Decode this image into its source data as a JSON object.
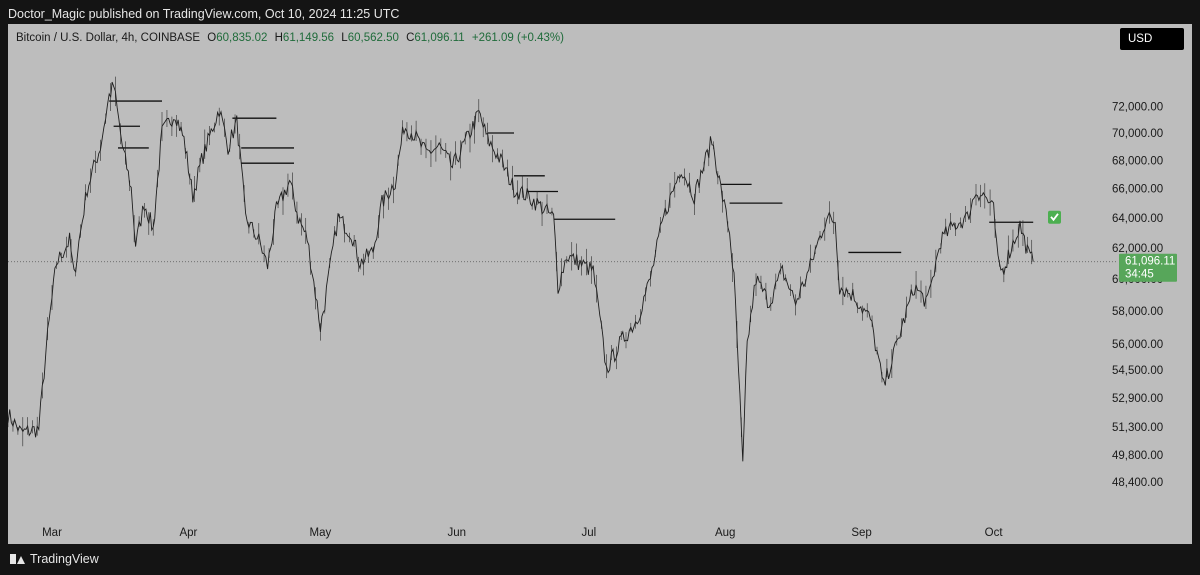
{
  "header": {
    "publisher_line": "Doctor_Magic published on TradingView.com, Oct 10, 2024 11:25 UTC"
  },
  "legend": {
    "symbol": "Bitcoin / U.S. Dollar, 4h, COINBASE",
    "open_label": "O",
    "open": "60,835.02",
    "high_label": "H",
    "high": "61,149.56",
    "low_label": "L",
    "low": "60,562.50",
    "close_label": "C",
    "close": "61,096.11",
    "change": "+261.09 (+0.43%)"
  },
  "currency_badge": "USD",
  "price_tag": {
    "price": "61,096.11",
    "countdown": "34:45",
    "color": "#57a65a"
  },
  "check_icon_color": "#4caf50",
  "footer": {
    "brand": "TradingView"
  },
  "chart_data": {
    "type": "line",
    "series_name": "",
    "y_scale": "log",
    "ylim": [
      47800,
      74500
    ],
    "y_ticks": [
      72000,
      70000,
      68000,
      66000,
      64000,
      62000,
      60000,
      58000,
      56000,
      54500,
      52900,
      51300,
      49800,
      48400
    ],
    "y_tick_labels": [
      "72,000.00",
      "70,000.00",
      "68,000.00",
      "66,000.00",
      "64,000.00",
      "62,000.00",
      "60,000.00",
      "58,000.00",
      "56,000.00",
      "54,500.00",
      "52,900.00",
      "51,300.00",
      "49,800.00",
      "48,400.00"
    ],
    "x_range": [
      "2024-02-20",
      "2024-10-27"
    ],
    "x_tick_labels": [
      {
        "date": "2024-03-01",
        "label": "Mar"
      },
      {
        "date": "2024-04-01",
        "label": "Apr"
      },
      {
        "date": "2024-05-01",
        "label": "May"
      },
      {
        "date": "2024-06-01",
        "label": "Jun"
      },
      {
        "date": "2024-07-01",
        "label": "Jul"
      },
      {
        "date": "2024-08-01",
        "label": "Aug"
      },
      {
        "date": "2024-09-01",
        "label": "Sep"
      },
      {
        "date": "2024-10-01",
        "label": "Oct"
      }
    ],
    "price_points": [
      [
        "2024-02-20",
        52000
      ],
      [
        "2024-02-23",
        51000
      ],
      [
        "2024-02-27",
        51200
      ],
      [
        "2024-02-29",
        56500
      ],
      [
        "2024-03-02",
        61000
      ],
      [
        "2024-03-05",
        62500
      ],
      [
        "2024-03-06",
        60200
      ],
      [
        "2024-03-09",
        66000
      ],
      [
        "2024-03-12",
        69000
      ],
      [
        "2024-03-14",
        72800
      ],
      [
        "2024-03-15",
        73600
      ],
      [
        "2024-03-17",
        69000
      ],
      [
        "2024-03-19",
        66000
      ],
      [
        "2024-03-20",
        62200
      ],
      [
        "2024-03-22",
        65000
      ],
      [
        "2024-03-24",
        63200
      ],
      [
        "2024-03-26",
        70000
      ],
      [
        "2024-03-29",
        71500
      ],
      [
        "2024-03-31",
        69500
      ],
      [
        "2024-04-02",
        65500
      ],
      [
        "2024-04-04",
        68000
      ],
      [
        "2024-04-08",
        71800
      ],
      [
        "2024-04-10",
        69000
      ],
      [
        "2024-04-12",
        70800
      ],
      [
        "2024-04-14",
        64000
      ],
      [
        "2024-04-17",
        62500
      ],
      [
        "2024-04-19",
        60800
      ],
      [
        "2024-04-21",
        64500
      ],
      [
        "2024-04-24",
        66500
      ],
      [
        "2024-04-26",
        64000
      ],
      [
        "2024-04-28",
        62600
      ],
      [
        "2024-05-01",
        57000
      ],
      [
        "2024-05-02",
        58500
      ],
      [
        "2024-05-05",
        64000
      ],
      [
        "2024-05-08",
        63000
      ],
      [
        "2024-05-10",
        61000
      ],
      [
        "2024-05-13",
        61800
      ],
      [
        "2024-05-15",
        65000
      ],
      [
        "2024-05-18",
        66500
      ],
      [
        "2024-05-20",
        70500
      ],
      [
        "2024-05-22",
        70000
      ],
      [
        "2024-05-25",
        68500
      ],
      [
        "2024-05-28",
        69000
      ],
      [
        "2024-05-31",
        67500
      ],
      [
        "2024-06-04",
        70000
      ],
      [
        "2024-06-06",
        71500
      ],
      [
        "2024-06-08",
        69500
      ],
      [
        "2024-06-11",
        68000
      ],
      [
        "2024-06-14",
        66000
      ],
      [
        "2024-06-17",
        65500
      ],
      [
        "2024-06-20",
        64800
      ],
      [
        "2024-06-23",
        64000
      ],
      [
        "2024-06-24",
        59500
      ],
      [
        "2024-06-26",
        61500
      ],
      [
        "2024-06-29",
        61000
      ],
      [
        "2024-07-02",
        60500
      ],
      [
        "2024-07-05",
        54500
      ],
      [
        "2024-07-08",
        56000
      ],
      [
        "2024-07-12",
        57500
      ],
      [
        "2024-07-15",
        60000
      ],
      [
        "2024-07-18",
        64000
      ],
      [
        "2024-07-22",
        67500
      ],
      [
        "2024-07-25",
        65500
      ],
      [
        "2024-07-29",
        69500
      ],
      [
        "2024-07-31",
        66000
      ],
      [
        "2024-08-02",
        63000
      ],
      [
        "2024-08-03",
        60000
      ],
      [
        "2024-08-05",
        49200
      ],
      [
        "2024-08-06",
        56000
      ],
      [
        "2024-08-08",
        60000
      ],
      [
        "2024-08-11",
        58500
      ],
      [
        "2024-08-14",
        60500
      ],
      [
        "2024-08-17",
        58500
      ],
      [
        "2024-08-20",
        60500
      ],
      [
        "2024-08-24",
        64000
      ],
      [
        "2024-08-26",
        63800
      ],
      [
        "2024-08-27",
        59500
      ],
      [
        "2024-08-30",
        59000
      ],
      [
        "2024-09-03",
        57500
      ],
      [
        "2024-09-06",
        53500
      ],
      [
        "2024-09-09",
        56000
      ],
      [
        "2024-09-13",
        59500
      ],
      [
        "2024-09-16",
        58500
      ],
      [
        "2024-09-19",
        62500
      ],
      [
        "2024-09-22",
        63500
      ],
      [
        "2024-09-25",
        64000
      ],
      [
        "2024-09-27",
        65800
      ],
      [
        "2024-09-29",
        65500
      ],
      [
        "2024-10-01",
        64500
      ],
      [
        "2024-10-02",
        61000
      ],
      [
        "2024-10-03",
        60500
      ],
      [
        "2024-10-05",
        62000
      ],
      [
        "2024-10-07",
        63500
      ],
      [
        "2024-10-09",
        61500
      ],
      [
        "2024-10-10",
        61096.11
      ]
    ],
    "horizontal_levels": [
      {
        "price": 72400,
        "from": "2024-03-14",
        "to": "2024-03-26"
      },
      {
        "price": 70500,
        "from": "2024-03-15",
        "to": "2024-03-21"
      },
      {
        "price": 68900,
        "from": "2024-03-16",
        "to": "2024-03-23"
      },
      {
        "price": 71100,
        "from": "2024-04-11",
        "to": "2024-04-21"
      },
      {
        "price": 68900,
        "from": "2024-04-13",
        "to": "2024-04-25"
      },
      {
        "price": 67800,
        "from": "2024-04-13",
        "to": "2024-04-25"
      },
      {
        "price": 70000,
        "from": "2024-06-08",
        "to": "2024-06-14"
      },
      {
        "price": 66900,
        "from": "2024-06-14",
        "to": "2024-06-21"
      },
      {
        "price": 65800,
        "from": "2024-06-17",
        "to": "2024-06-24"
      },
      {
        "price": 63900,
        "from": "2024-06-23",
        "to": "2024-07-07"
      },
      {
        "price": 66300,
        "from": "2024-07-31",
        "to": "2024-08-07"
      },
      {
        "price": 65000,
        "from": "2024-08-02",
        "to": "2024-08-14"
      },
      {
        "price": 61700,
        "from": "2024-08-29",
        "to": "2024-09-10"
      },
      {
        "price": 63700,
        "from": "2024-09-30",
        "to": "2024-10-10"
      }
    ],
    "current_price_line": 61096.11
  }
}
